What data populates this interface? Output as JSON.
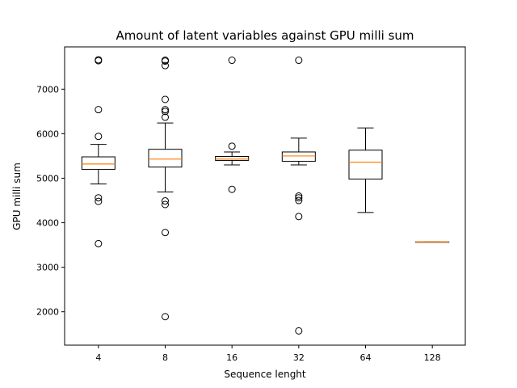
{
  "chart_data": {
    "type": "boxplot",
    "title": "Amount of latent variables against GPU milli sum",
    "xlabel": "Sequence lenght",
    "ylabel": "GPU milli sum",
    "ylim": [
      1250,
      7950
    ],
    "yticks": [
      2000,
      3000,
      4000,
      5000,
      6000,
      7000
    ],
    "categories": [
      "4",
      "8",
      "16",
      "32",
      "64",
      "128"
    ],
    "boxes": [
      {
        "category": "4",
        "whisker_low": 4870,
        "q1": 5200,
        "median": 5320,
        "q3": 5480,
        "whisker_high": 5760,
        "outliers": [
          7660,
          7640,
          6540,
          5940,
          4560,
          4480,
          3530
        ]
      },
      {
        "category": "8",
        "whisker_low": 4690,
        "q1": 5250,
        "median": 5430,
        "q3": 5650,
        "whisker_high": 6240,
        "outliers": [
          7650,
          7630,
          7530,
          6770,
          6540,
          6500,
          6370,
          4490,
          4410,
          3780,
          1890
        ]
      },
      {
        "category": "16",
        "whisker_low": 5300,
        "q1": 5400,
        "median": 5430,
        "q3": 5490,
        "whisker_high": 5590,
        "outliers": [
          7650,
          5720,
          4750
        ]
      },
      {
        "category": "32",
        "whisker_low": 5300,
        "q1": 5380,
        "median": 5500,
        "q3": 5590,
        "whisker_high": 5900,
        "outliers": [
          7650,
          4600,
          4560,
          4500,
          4140,
          1570
        ]
      },
      {
        "category": "64",
        "whisker_low": 4230,
        "q1": 4980,
        "median": 5360,
        "q3": 5630,
        "whisker_high": 6130,
        "outliers": []
      },
      {
        "category": "128",
        "whisker_low": 3570,
        "q1": 3570,
        "median": 3570,
        "q3": 3570,
        "whisker_high": 3570,
        "outliers": []
      }
    ],
    "colors": {
      "box": "#000000",
      "median": "#ff7f0e",
      "outlier": "#000000"
    },
    "grid": false,
    "legend": "none"
  }
}
